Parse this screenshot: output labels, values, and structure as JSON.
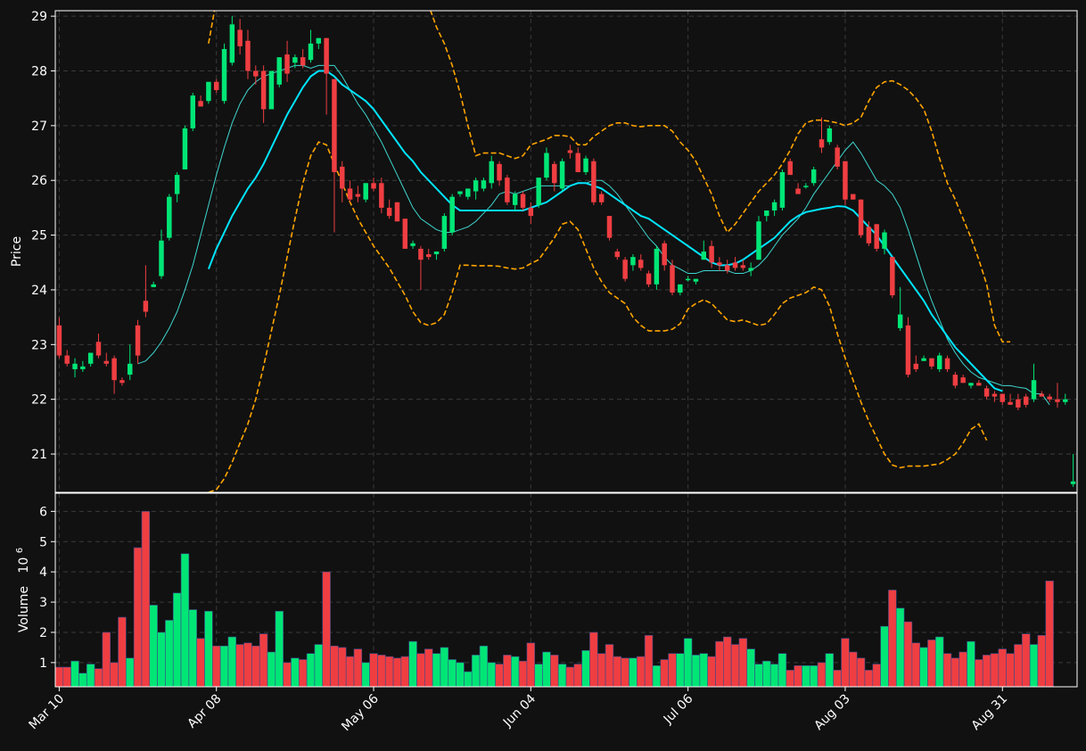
{
  "chart_data": {
    "type": "candlestick",
    "colors": {
      "background": "#111111",
      "up": "#00e676",
      "down": "#ef3e42",
      "ma_short": "#3fd6cf",
      "ma_long": "#00e5ff",
      "bollinger": "#ffa500",
      "grid": "#3a3a3a"
    },
    "price_panel": {
      "ylabel": "Price",
      "ylim": [
        20.3,
        29.1
      ],
      "yticks": [
        21,
        22,
        23,
        24,
        25,
        26,
        27,
        28,
        29
      ],
      "grid": true
    },
    "volume_panel": {
      "ylabel": "Volume",
      "yscale_label": "10",
      "yscale_exp": "6",
      "ylim": [
        0.2,
        6.6
      ],
      "yticks": [
        1,
        2,
        3,
        4,
        5,
        6
      ],
      "unit": "millions"
    },
    "x_axis": {
      "tick_labels": [
        "Mar 10",
        "Apr 08",
        "May 06",
        "Jun 04",
        "Jul 06",
        "Aug 03",
        "Aug 31"
      ],
      "tick_index": [
        0,
        20,
        40,
        60,
        80,
        100,
        120
      ]
    },
    "ohlc": [
      [
        23.35,
        23.5,
        22.75,
        22.8
      ],
      [
        22.8,
        22.9,
        22.6,
        22.65
      ],
      [
        22.55,
        22.75,
        22.4,
        22.65
      ],
      [
        22.55,
        22.7,
        22.5,
        22.6
      ],
      [
        22.65,
        22.85,
        22.6,
        22.85
      ],
      [
        23.05,
        23.2,
        22.75,
        22.8
      ],
      [
        22.7,
        22.85,
        22.6,
        22.65
      ],
      [
        22.75,
        22.8,
        22.1,
        22.35
      ],
      [
        22.35,
        22.4,
        22.25,
        22.3
      ],
      [
        22.45,
        23.0,
        22.35,
        22.65
      ],
      [
        23.35,
        23.45,
        22.65,
        22.8
      ],
      [
        23.8,
        24.45,
        23.5,
        23.6
      ],
      [
        24.05,
        24.15,
        24.05,
        24.1
      ],
      [
        24.25,
        25.1,
        24.2,
        24.9
      ],
      [
        24.95,
        25.75,
        24.9,
        25.7
      ],
      [
        25.75,
        26.15,
        25.6,
        26.1
      ],
      [
        26.2,
        27.0,
        26.2,
        26.95
      ],
      [
        26.95,
        27.6,
        26.9,
        27.55
      ],
      [
        27.45,
        27.55,
        27.35,
        27.35
      ],
      [
        27.45,
        27.8,
        27.4,
        27.8
      ],
      [
        27.8,
        27.85,
        27.6,
        27.65
      ],
      [
        27.45,
        28.5,
        27.4,
        28.4
      ],
      [
        28.15,
        29.0,
        28.1,
        28.85
      ],
      [
        28.75,
        28.95,
        28.3,
        28.45
      ],
      [
        28.55,
        28.75,
        27.85,
        28.0
      ],
      [
        28.0,
        28.1,
        27.75,
        27.9
      ],
      [
        28.0,
        28.1,
        27.05,
        27.3
      ],
      [
        27.3,
        28.0,
        27.3,
        28.0
      ],
      [
        27.75,
        28.2,
        27.7,
        28.25
      ],
      [
        28.3,
        28.55,
        27.8,
        27.95
      ],
      [
        28.15,
        28.3,
        28.05,
        28.25
      ],
      [
        28.25,
        28.4,
        28.05,
        28.1
      ],
      [
        28.2,
        28.75,
        28.15,
        28.5
      ],
      [
        28.5,
        28.6,
        28.4,
        28.6
      ],
      [
        28.6,
        28.6,
        27.2,
        27.95
      ],
      [
        27.85,
        27.85,
        25.05,
        26.15
      ],
      [
        26.25,
        26.35,
        25.6,
        25.85
      ],
      [
        25.85,
        26.0,
        25.6,
        25.65
      ],
      [
        25.75,
        25.9,
        25.6,
        25.7
      ],
      [
        25.65,
        25.95,
        25.6,
        25.95
      ],
      [
        25.95,
        26.05,
        25.8,
        25.85
      ],
      [
        25.95,
        26.05,
        25.4,
        25.5
      ],
      [
        25.5,
        25.65,
        25.3,
        25.35
      ],
      [
        25.6,
        25.6,
        25.25,
        25.25
      ],
      [
        25.3,
        25.3,
        24.75,
        24.75
      ],
      [
        24.8,
        24.9,
        24.75,
        24.85
      ],
      [
        24.75,
        24.8,
        24.0,
        24.55
      ],
      [
        24.65,
        24.75,
        24.55,
        24.6
      ],
      [
        24.65,
        24.7,
        24.55,
        24.7
      ],
      [
        24.75,
        25.4,
        24.7,
        25.35
      ],
      [
        25.05,
        25.75,
        25.0,
        25.7
      ],
      [
        25.75,
        25.8,
        25.7,
        25.8
      ],
      [
        25.7,
        25.85,
        25.65,
        25.85
      ],
      [
        25.8,
        26.05,
        25.65,
        26.0
      ],
      [
        25.85,
        26.05,
        25.8,
        26.0
      ],
      [
        25.95,
        26.45,
        25.85,
        26.35
      ],
      [
        26.3,
        26.35,
        25.9,
        26.0
      ],
      [
        26.05,
        26.1,
        25.55,
        25.6
      ],
      [
        25.55,
        25.8,
        25.45,
        25.75
      ],
      [
        25.75,
        25.8,
        25.45,
        25.5
      ],
      [
        25.5,
        25.6,
        25.2,
        25.35
      ],
      [
        25.55,
        26.05,
        25.5,
        26.05
      ],
      [
        26.05,
        26.6,
        26.0,
        26.5
      ],
      [
        26.3,
        26.35,
        25.8,
        25.95
      ],
      [
        25.85,
        26.4,
        25.8,
        26.35
      ],
      [
        26.55,
        26.65,
        26.4,
        26.5
      ],
      [
        26.5,
        26.6,
        26.15,
        26.15
      ],
      [
        26.15,
        26.45,
        26.1,
        26.4
      ],
      [
        26.35,
        26.4,
        25.55,
        25.6
      ],
      [
        25.75,
        25.8,
        25.55,
        25.6
      ],
      [
        25.35,
        25.35,
        24.9,
        24.95
      ],
      [
        24.7,
        24.75,
        24.55,
        24.6
      ],
      [
        24.55,
        24.6,
        24.15,
        24.2
      ],
      [
        24.45,
        24.65,
        24.35,
        24.6
      ],
      [
        24.55,
        24.65,
        24.35,
        24.4
      ],
      [
        24.3,
        24.35,
        24.05,
        24.1
      ],
      [
        24.1,
        24.8,
        24.0,
        24.75
      ],
      [
        24.85,
        24.9,
        24.35,
        24.45
      ],
      [
        24.45,
        24.55,
        23.9,
        23.95
      ],
      [
        23.95,
        24.1,
        23.9,
        24.1
      ],
      [
        24.2,
        24.25,
        24.15,
        24.2
      ],
      [
        24.15,
        24.2,
        24.1,
        24.2
      ],
      [
        24.55,
        24.9,
        24.55,
        24.7
      ],
      [
        24.8,
        24.9,
        24.4,
        24.5
      ],
      [
        24.5,
        24.6,
        24.35,
        24.45
      ],
      [
        24.45,
        24.55,
        24.3,
        24.35
      ],
      [
        24.5,
        24.6,
        24.35,
        24.4
      ],
      [
        24.45,
        24.55,
        24.35,
        24.4
      ],
      [
        24.35,
        24.5,
        24.25,
        24.4
      ],
      [
        24.55,
        25.35,
        24.55,
        25.25
      ],
      [
        25.35,
        25.45,
        25.25,
        25.45
      ],
      [
        25.45,
        25.65,
        25.35,
        25.6
      ],
      [
        25.5,
        26.2,
        25.45,
        26.15
      ],
      [
        26.35,
        26.4,
        26.1,
        26.1
      ],
      [
        25.85,
        25.95,
        25.75,
        25.75
      ],
      [
        25.9,
        25.95,
        25.85,
        25.9
      ],
      [
        25.95,
        26.25,
        25.9,
        26.2
      ],
      [
        26.75,
        27.15,
        26.5,
        26.6
      ],
      [
        26.7,
        27.0,
        26.65,
        26.95
      ],
      [
        26.6,
        26.65,
        26.2,
        26.25
      ],
      [
        26.35,
        26.35,
        25.55,
        25.65
      ],
      [
        25.75,
        25.75,
        25.65,
        25.65
      ],
      [
        25.65,
        25.65,
        24.95,
        25.0
      ],
      [
        25.15,
        25.25,
        24.8,
        24.85
      ],
      [
        25.2,
        25.2,
        24.7,
        24.75
      ],
      [
        24.75,
        25.1,
        24.65,
        25.05
      ],
      [
        24.6,
        24.6,
        23.85,
        23.9
      ],
      [
        23.3,
        24.05,
        23.25,
        23.55
      ],
      [
        23.35,
        23.5,
        22.4,
        22.45
      ],
      [
        22.65,
        22.8,
        22.5,
        22.55
      ],
      [
        22.7,
        22.8,
        22.7,
        22.75
      ],
      [
        22.75,
        22.75,
        22.55,
        22.6
      ],
      [
        22.55,
        22.85,
        22.5,
        22.8
      ],
      [
        22.75,
        22.8,
        22.5,
        22.55
      ],
      [
        22.45,
        22.5,
        22.2,
        22.25
      ],
      [
        22.4,
        22.45,
        22.3,
        22.3
      ],
      [
        22.25,
        22.3,
        22.2,
        22.3
      ],
      [
        22.3,
        22.35,
        22.25,
        22.25
      ],
      [
        22.2,
        22.25,
        22.0,
        22.05
      ],
      [
        22.1,
        22.15,
        21.95,
        22.05
      ],
      [
        22.1,
        22.1,
        21.9,
        21.95
      ],
      [
        21.95,
        22.1,
        21.9,
        21.9
      ],
      [
        22.0,
        22.1,
        21.8,
        21.85
      ],
      [
        22.05,
        22.1,
        21.85,
        21.9
      ],
      [
        22.0,
        22.65,
        21.95,
        22.35
      ],
      [
        22.1,
        22.15,
        22.05,
        22.05
      ],
      [
        22.05,
        22.1,
        21.95,
        22.0
      ],
      [
        22.0,
        22.3,
        21.85,
        21.95
      ],
      [
        21.95,
        22.1,
        21.9,
        22.0
      ],
      [
        20.45,
        21.0,
        20.4,
        20.5
      ]
    ],
    "volume": [
      0.85,
      0.85,
      1.05,
      0.65,
      0.95,
      0.8,
      2.0,
      1.0,
      2.5,
      1.15,
      4.8,
      6.0,
      2.9,
      2.0,
      2.4,
      3.3,
      4.6,
      2.75,
      1.8,
      2.7,
      1.55,
      1.55,
      1.85,
      1.6,
      1.65,
      1.55,
      1.95,
      1.35,
      2.7,
      1.0,
      1.15,
      1.1,
      1.3,
      1.6,
      4.0,
      1.55,
      1.5,
      1.2,
      1.45,
      1.0,
      1.3,
      1.25,
      1.2,
      1.15,
      1.2,
      1.7,
      1.3,
      1.45,
      1.3,
      1.5,
      1.1,
      1.0,
      0.7,
      1.25,
      1.55,
      1.0,
      0.95,
      1.25,
      1.2,
      1.05,
      1.65,
      0.95,
      1.35,
      1.25,
      0.95,
      0.85,
      0.95,
      1.4,
      2.0,
      1.3,
      1.6,
      1.2,
      1.15,
      1.15,
      1.2,
      1.9,
      0.9,
      1.1,
      1.3,
      1.3,
      1.8,
      1.25,
      1.3,
      1.2,
      1.7,
      1.85,
      1.6,
      1.8,
      1.45,
      0.95,
      1.05,
      0.95,
      1.3,
      0.75,
      0.9,
      0.9,
      0.9,
      1.0,
      1.3,
      0.75,
      1.8,
      1.35,
      1.15,
      0.75,
      0.95,
      2.2,
      3.4,
      2.8,
      2.35,
      1.65,
      1.5,
      1.75,
      1.85,
      1.3,
      1.15,
      1.35,
      1.7,
      1.1,
      1.25,
      1.3,
      1.45,
      1.3,
      1.6,
      1.95,
      1.6,
      1.9,
      3.7
    ],
    "ma_short": [
      null,
      null,
      null,
      null,
      null,
      null,
      null,
      null,
      null,
      null,
      22.65,
      22.7,
      22.85,
      23.05,
      23.3,
      23.6,
      24.0,
      24.45,
      25.0,
      25.55,
      26.1,
      26.6,
      27.05,
      27.4,
      27.65,
      27.8,
      27.9,
      27.95,
      28.0,
      28.05,
      28.1,
      28.1,
      28.05,
      28.1,
      28.1,
      28.1,
      27.9,
      27.65,
      27.4,
      27.2,
      26.95,
      26.7,
      26.4,
      26.1,
      25.8,
      25.5,
      25.3,
      25.2,
      25.1,
      25.05,
      25.05,
      25.1,
      25.15,
      25.25,
      25.4,
      25.55,
      25.75,
      25.8,
      25.75,
      25.8,
      25.85,
      25.9,
      25.9,
      25.9,
      25.9,
      25.9,
      25.95,
      25.95,
      26.0,
      26.0,
      25.9,
      25.75,
      25.55,
      25.35,
      25.15,
      24.95,
      24.8,
      24.6,
      24.45,
      24.38,
      24.3,
      24.3,
      24.35,
      24.35,
      24.35,
      24.35,
      24.3,
      24.3,
      24.35,
      24.45,
      24.6,
      24.8,
      25.0,
      25.15,
      25.3,
      25.5,
      25.75,
      25.95,
      26.15,
      26.35,
      26.55,
      26.7,
      26.5,
      26.25,
      26.0,
      25.9,
      25.75,
      25.5,
      25.1,
      24.65,
      24.2,
      23.8,
      23.45,
      23.1,
      22.85,
      22.65,
      22.5,
      22.4,
      22.35,
      22.3,
      22.25,
      22.25,
      22.22,
      22.2,
      22.1,
      22.1,
      21.9
    ],
    "ma_long": [
      null,
      null,
      null,
      null,
      null,
      null,
      null,
      null,
      null,
      null,
      null,
      null,
      null,
      null,
      null,
      null,
      null,
      null,
      null,
      24.38,
      24.75,
      25.05,
      25.35,
      25.6,
      25.85,
      26.05,
      26.3,
      26.6,
      26.9,
      27.2,
      27.45,
      27.7,
      27.9,
      28.0,
      28.0,
      27.9,
      27.75,
      27.65,
      27.55,
      27.45,
      27.3,
      27.1,
      26.9,
      26.7,
      26.5,
      26.35,
      26.15,
      26.0,
      25.85,
      25.7,
      25.55,
      25.45,
      25.45,
      25.45,
      25.45,
      25.45,
      25.45,
      25.45,
      25.45,
      25.45,
      25.5,
      25.55,
      25.6,
      25.7,
      25.8,
      25.9,
      25.95,
      25.95,
      25.9,
      25.85,
      25.75,
      25.65,
      25.55,
      25.45,
      25.35,
      25.3,
      25.2,
      25.1,
      25.0,
      24.9,
      24.8,
      24.7,
      24.6,
      24.5,
      24.45,
      24.45,
      24.48,
      24.55,
      24.65,
      24.75,
      24.85,
      24.95,
      25.1,
      25.25,
      25.35,
      25.42,
      25.45,
      25.48,
      25.5,
      25.53,
      25.52,
      25.45,
      25.3,
      25.15,
      25.0,
      24.8,
      24.6,
      24.4,
      24.2,
      24.0,
      23.8,
      23.55,
      23.35,
      23.15,
      22.95,
      22.8,
      22.65,
      22.5,
      22.35,
      22.2,
      22.15
    ],
    "bollinger_upper": [
      null,
      null,
      null,
      null,
      null,
      null,
      null,
      null,
      null,
      null,
      null,
      null,
      null,
      null,
      null,
      null,
      null,
      null,
      null,
      28.5,
      29.3,
      29.8,
      30.0,
      30.0,
      30.0,
      30.0,
      30.0,
      30.0,
      30.0,
      30.0,
      30.0,
      30.0,
      30.0,
      30.0,
      30.0,
      30.0,
      30.0,
      30.0,
      30.0,
      30.0,
      30.0,
      30.0,
      30.0,
      30.0,
      30.0,
      30.0,
      29.9,
      29.2,
      28.8,
      28.5,
      28.1,
      27.6,
      27.0,
      26.45,
      26.5,
      26.5,
      26.5,
      26.45,
      26.4,
      26.45,
      26.65,
      26.7,
      26.75,
      26.82,
      26.82,
      26.8,
      26.65,
      26.65,
      26.8,
      26.9,
      27.0,
      27.05,
      27.05,
      27.0,
      26.98,
      27.0,
      27.0,
      27.0,
      26.9,
      26.7,
      26.55,
      26.35,
      26.05,
      25.75,
      25.35,
      25.05,
      25.2,
      25.4,
      25.6,
      25.8,
      25.95,
      26.1,
      26.3,
      26.55,
      26.85,
      27.05,
      27.1,
      27.1,
      27.08,
      27.05,
      27.0,
      27.05,
      27.15,
      27.45,
      27.7,
      27.8,
      27.82,
      27.75,
      27.65,
      27.5,
      27.3,
      26.9,
      26.4,
      25.95,
      25.65,
      25.3,
      24.95,
      24.55,
      24.1,
      23.35,
      23.05,
      23.05
    ],
    "bollinger_lower": [
      null,
      null,
      null,
      null,
      null,
      null,
      null,
      null,
      null,
      null,
      null,
      null,
      null,
      null,
      null,
      null,
      null,
      null,
      null,
      20.3,
      20.35,
      20.55,
      20.85,
      21.2,
      21.55,
      22.0,
      22.6,
      23.25,
      23.9,
      24.6,
      25.3,
      25.95,
      26.45,
      26.7,
      26.65,
      26.3,
      25.95,
      25.6,
      25.3,
      25.05,
      24.8,
      24.6,
      24.4,
      24.15,
      23.9,
      23.6,
      23.4,
      23.35,
      23.4,
      23.55,
      23.95,
      24.45,
      24.45,
      24.44,
      24.44,
      24.44,
      24.43,
      24.4,
      24.38,
      24.4,
      24.48,
      24.55,
      24.75,
      24.95,
      25.2,
      25.25,
      25.1,
      24.75,
      24.4,
      24.15,
      23.95,
      23.85,
      23.75,
      23.5,
      23.35,
      23.25,
      23.25,
      23.25,
      23.28,
      23.38,
      23.65,
      23.75,
      23.82,
      23.75,
      23.6,
      23.45,
      23.42,
      23.45,
      23.4,
      23.35,
      23.38,
      23.55,
      23.75,
      23.85,
      23.9,
      23.95,
      24.05,
      24.0,
      23.7,
      23.2,
      22.75,
      22.35,
      21.95,
      21.6,
      21.3,
      21.0,
      20.8,
      20.75,
      20.78,
      20.78,
      20.78,
      20.8,
      20.82,
      20.9,
      21.0,
      21.2,
      21.45,
      21.55,
      21.25
    ]
  }
}
